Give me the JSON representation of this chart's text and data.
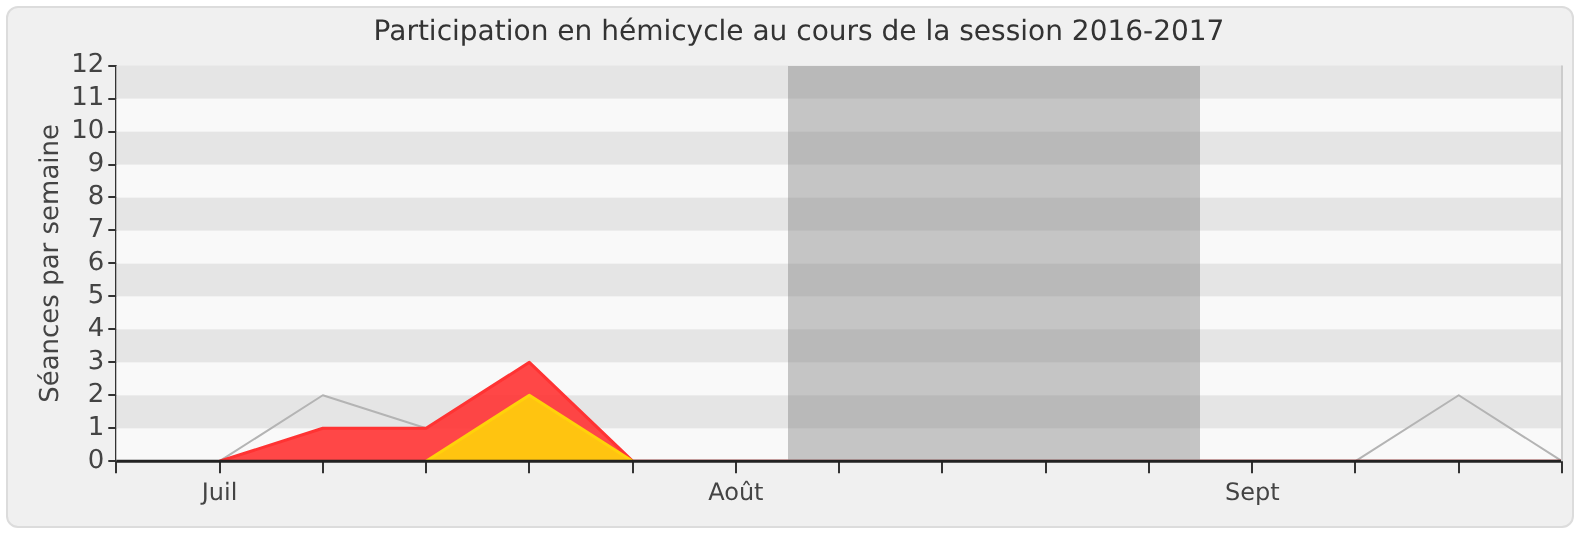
{
  "chart_data": {
    "type": "area",
    "title": "Participation en hémicycle au cours de la session 2016-2017",
    "ylabel": "Séances par semaine",
    "categories": [
      null,
      "Juil",
      null,
      null,
      null,
      null,
      "Août",
      null,
      null,
      null,
      null,
      "Sept",
      null,
      null,
      null
    ],
    "series": [
      {
        "type": "line",
        "color": "#b4b4b4",
        "values": [
          null,
          0,
          2,
          1,
          null,
          null,
          null,
          null,
          null,
          null,
          null,
          null,
          0,
          2,
          0
        ]
      },
      {
        "type": "area",
        "color": "#ff3333",
        "values": [
          null,
          0,
          1,
          1,
          3,
          0,
          0,
          0,
          0,
          0,
          0,
          0,
          0,
          0,
          0
        ]
      },
      {
        "type": "area",
        "color": "#ffd20a",
        "values": [
          null,
          null,
          null,
          0,
          2,
          0,
          null,
          null,
          null,
          null,
          null,
          null,
          null,
          null,
          null
        ]
      }
    ],
    "ylim": [
      0,
      12
    ],
    "yticks": [
      0,
      1,
      2,
      3,
      4,
      5,
      6,
      7,
      8,
      9,
      10,
      11,
      12
    ],
    "legend": false,
    "marker": "none"
  }
}
